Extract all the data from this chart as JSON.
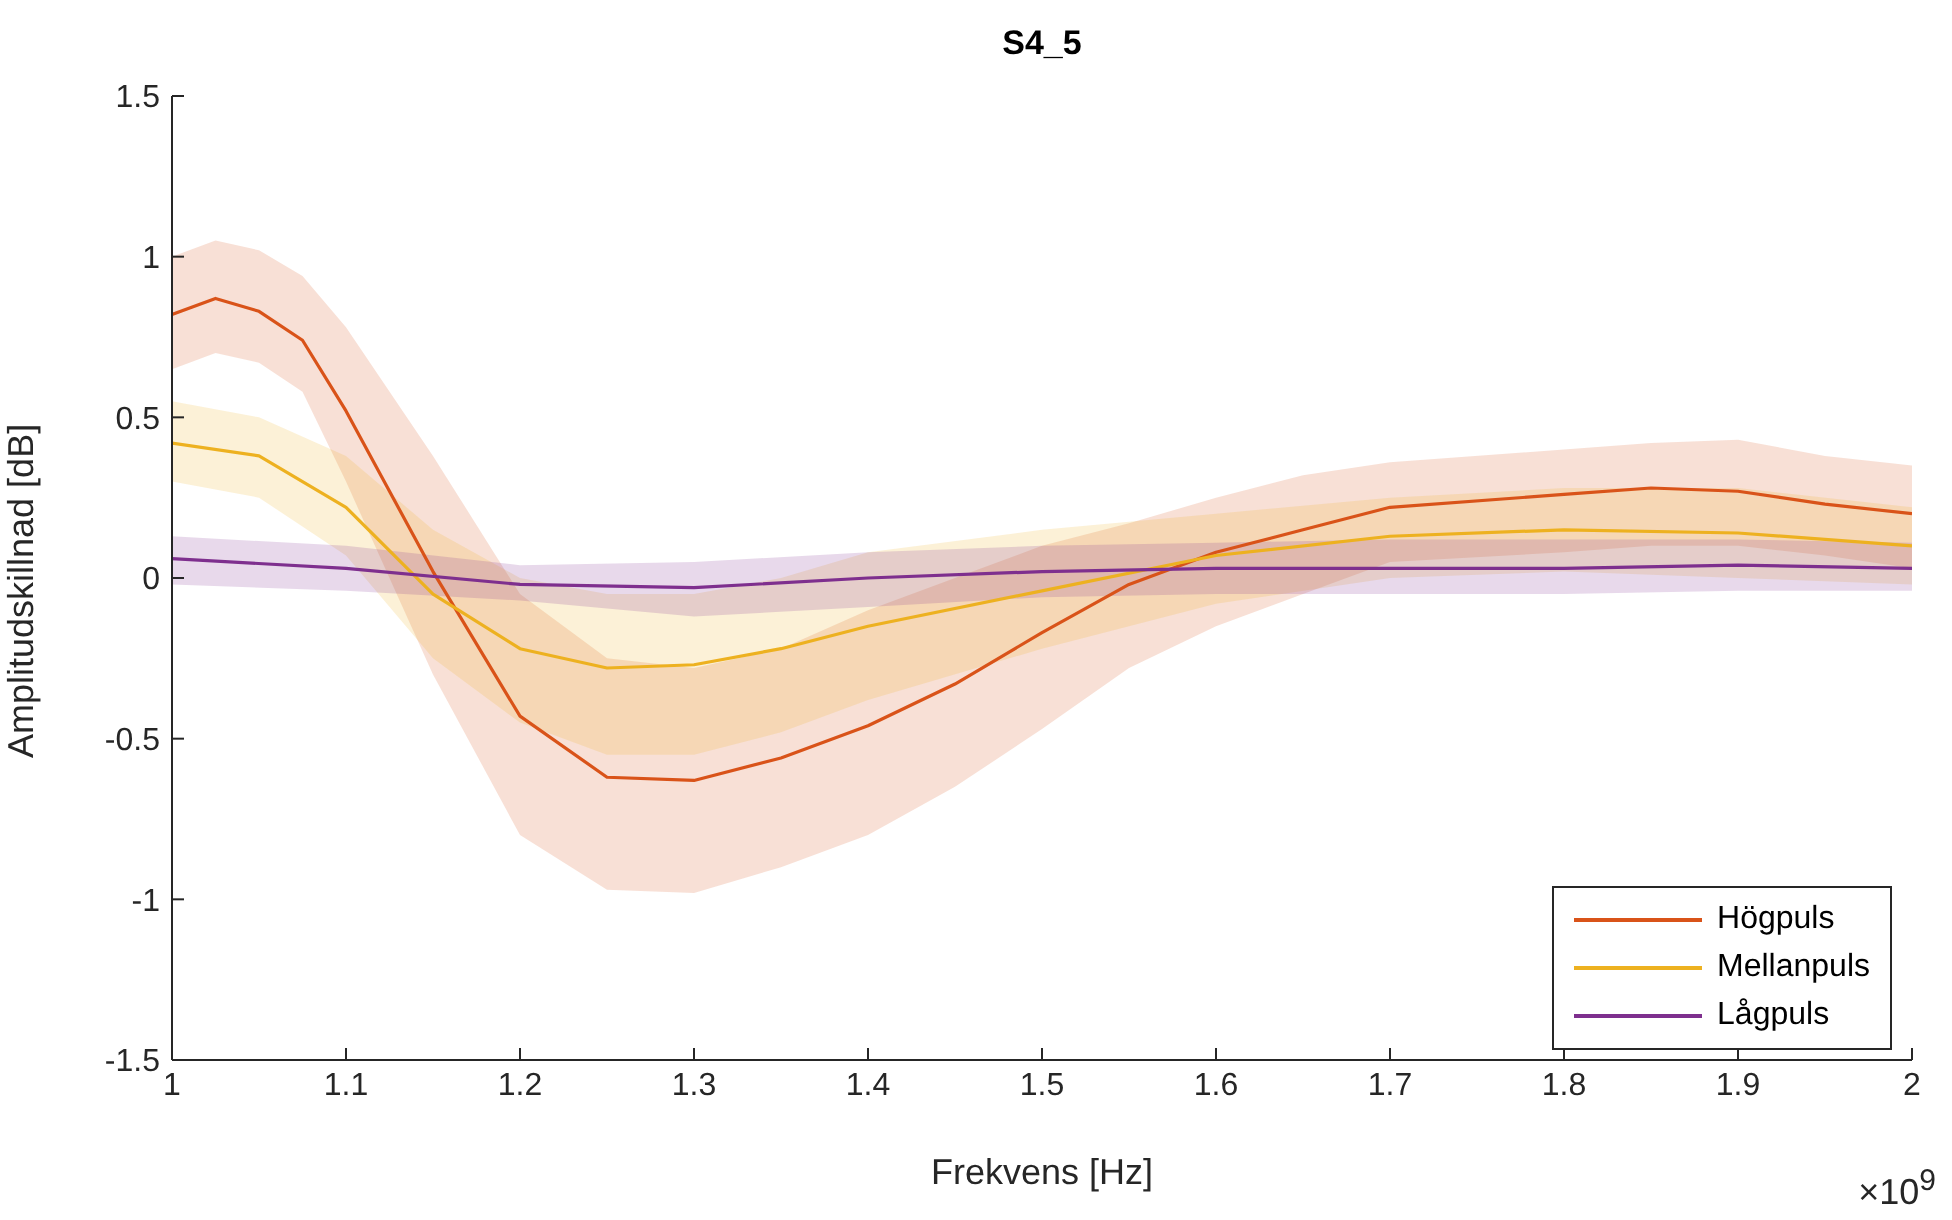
{
  "chart_data": {
    "type": "line",
    "title": "S4_5",
    "xlabel": "Frekvens [Hz]",
    "ylabel": "Amplitudskillnad [dB]",
    "annotations": [
      "×10$^{9}$"
    ],
    "xlim": [
      1,
      2
    ],
    "xticks": [
      1,
      1.1,
      1.2,
      1.3,
      1.4,
      1.5,
      1.6,
      1.7,
      1.8,
      1.9,
      2
    ],
    "ylim": [
      -1.5,
      1.5
    ],
    "yticks": [
      -1.5,
      -1,
      -0.5,
      0,
      0.5,
      1,
      1.5
    ],
    "grid": false,
    "legend": "bottom right",
    "line_style": "solid",
    "marker": "none",
    "series": [
      {
        "name": "Högpuls",
        "color": "#d95319",
        "x": [
          1,
          1.025,
          1.05,
          1.075,
          1.1,
          1.15,
          1.2,
          1.25,
          1.3,
          1.35,
          1.4,
          1.45,
          1.5,
          1.55,
          1.6,
          1.65,
          1.7,
          1.8,
          1.85,
          1.9,
          1.95,
          2
        ],
        "values": [
          0.82,
          0.87,
          0.83,
          0.74,
          0.52,
          0.02,
          -0.43,
          -0.62,
          -0.63,
          -0.56,
          -0.46,
          -0.33,
          -0.17,
          -0.02,
          0.08,
          0.15,
          0.22,
          0.26,
          0.28,
          0.27,
          0.23,
          0.2
        ],
        "lower": [
          0.65,
          0.7,
          0.67,
          0.58,
          0.3,
          -0.3,
          -0.8,
          -0.97,
          -0.98,
          -0.9,
          -0.8,
          -0.65,
          -0.47,
          -0.28,
          -0.15,
          -0.05,
          0.05,
          0.08,
          0.1,
          0.1,
          0.07,
          0.03
        ],
        "upper": [
          1,
          1.05,
          1.02,
          0.94,
          0.78,
          0.38,
          -0.05,
          -0.25,
          -0.28,
          -0.22,
          -0.1,
          0,
          0.1,
          0.17,
          0.25,
          0.32,
          0.36,
          0.4,
          0.42,
          0.43,
          0.38,
          0.35
        ]
      },
      {
        "name": "Mellanpuls",
        "color": "#edb120",
        "x": [
          1,
          1.05,
          1.1,
          1.15,
          1.2,
          1.25,
          1.3,
          1.35,
          1.4,
          1.5,
          1.6,
          1.7,
          1.8,
          1.9,
          2
        ],
        "values": [
          0.42,
          0.38,
          0.22,
          -0.05,
          -0.22,
          -0.28,
          -0.27,
          -0.22,
          -0.15,
          -0.04,
          0.07,
          0.13,
          0.15,
          0.14,
          0.1
        ],
        "lower": [
          0.3,
          0.25,
          0.07,
          -0.25,
          -0.45,
          -0.55,
          -0.55,
          -0.48,
          -0.38,
          -0.22,
          -0.08,
          0,
          0.02,
          0,
          -0.02
        ],
        "upper": [
          0.55,
          0.5,
          0.38,
          0.15,
          0,
          -0.05,
          -0.05,
          0,
          0.08,
          0.15,
          0.2,
          0.25,
          0.28,
          0.28,
          0.22
        ]
      },
      {
        "name": "Lågpuls",
        "color": "#7e2f8e",
        "x": [
          1,
          1.1,
          1.2,
          1.3,
          1.4,
          1.5,
          1.6,
          1.7,
          1.8,
          1.9,
          2
        ],
        "values": [
          0.06,
          0.03,
          -0.02,
          -0.03,
          0,
          0.02,
          0.03,
          0.03,
          0.03,
          0.04,
          0.03
        ],
        "lower": [
          -0.02,
          -0.04,
          -0.07,
          -0.12,
          -0.09,
          -0.06,
          -0.05,
          -0.05,
          -0.05,
          -0.04,
          -0.04
        ],
        "upper": [
          0.13,
          0.1,
          0.04,
          0.05,
          0.08,
          0.1,
          0.11,
          0.12,
          0.12,
          0.12,
          0.11
        ]
      }
    ]
  }
}
